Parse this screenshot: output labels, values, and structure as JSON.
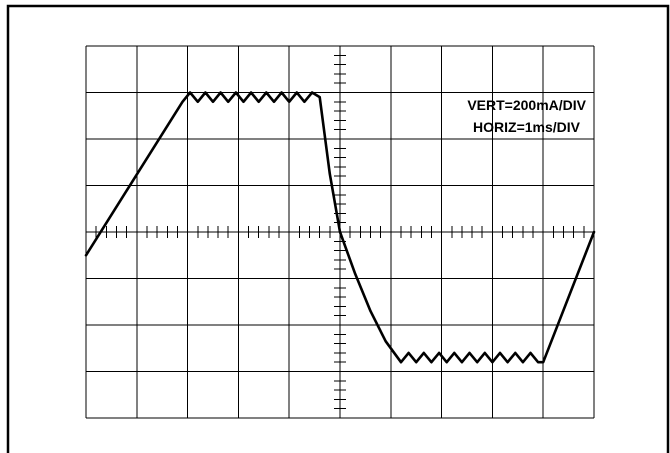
{
  "chart_data": {
    "type": "line",
    "title": "",
    "xlabel": "",
    "ylabel": "",
    "settings": [
      "VERT=200mA/DIV",
      "HORIZ=1ms/DIV"
    ],
    "x_unit": "ms",
    "y_unit": "mA",
    "xlim": [
      -5,
      5
    ],
    "ylim": [
      -800,
      800
    ],
    "grid": true,
    "divisions": {
      "x": 10,
      "y": 8,
      "minor_per_division": 5
    },
    "series": [
      {
        "x": [
          -5.0,
          -3.1,
          -2.95,
          -2.8,
          -2.65,
          -2.5,
          -2.35,
          -2.2,
          -2.05,
          -1.9,
          -1.75,
          -1.6,
          -1.45,
          -1.3,
          -1.15,
          -1.0,
          -0.85,
          -0.7,
          -0.55,
          -0.4,
          -0.2,
          0.0,
          0.3,
          0.6,
          0.9,
          1.2,
          1.35,
          1.5,
          1.65,
          1.8,
          1.95,
          2.1,
          2.25,
          2.4,
          2.55,
          2.7,
          2.85,
          3.0,
          3.15,
          3.3,
          3.45,
          3.6,
          3.75,
          3.9,
          4.0,
          5.0
        ],
        "y": [
          -100,
          560,
          600,
          560,
          600,
          560,
          600,
          560,
          600,
          560,
          600,
          560,
          600,
          560,
          600,
          560,
          600,
          560,
          600,
          580,
          250,
          0,
          -180,
          -340,
          -470,
          -560,
          -520,
          -560,
          -520,
          -560,
          -520,
          -560,
          -520,
          -560,
          -520,
          -560,
          -520,
          -560,
          -520,
          -560,
          -520,
          -560,
          -520,
          -560,
          -560,
          0
        ]
      }
    ]
  }
}
